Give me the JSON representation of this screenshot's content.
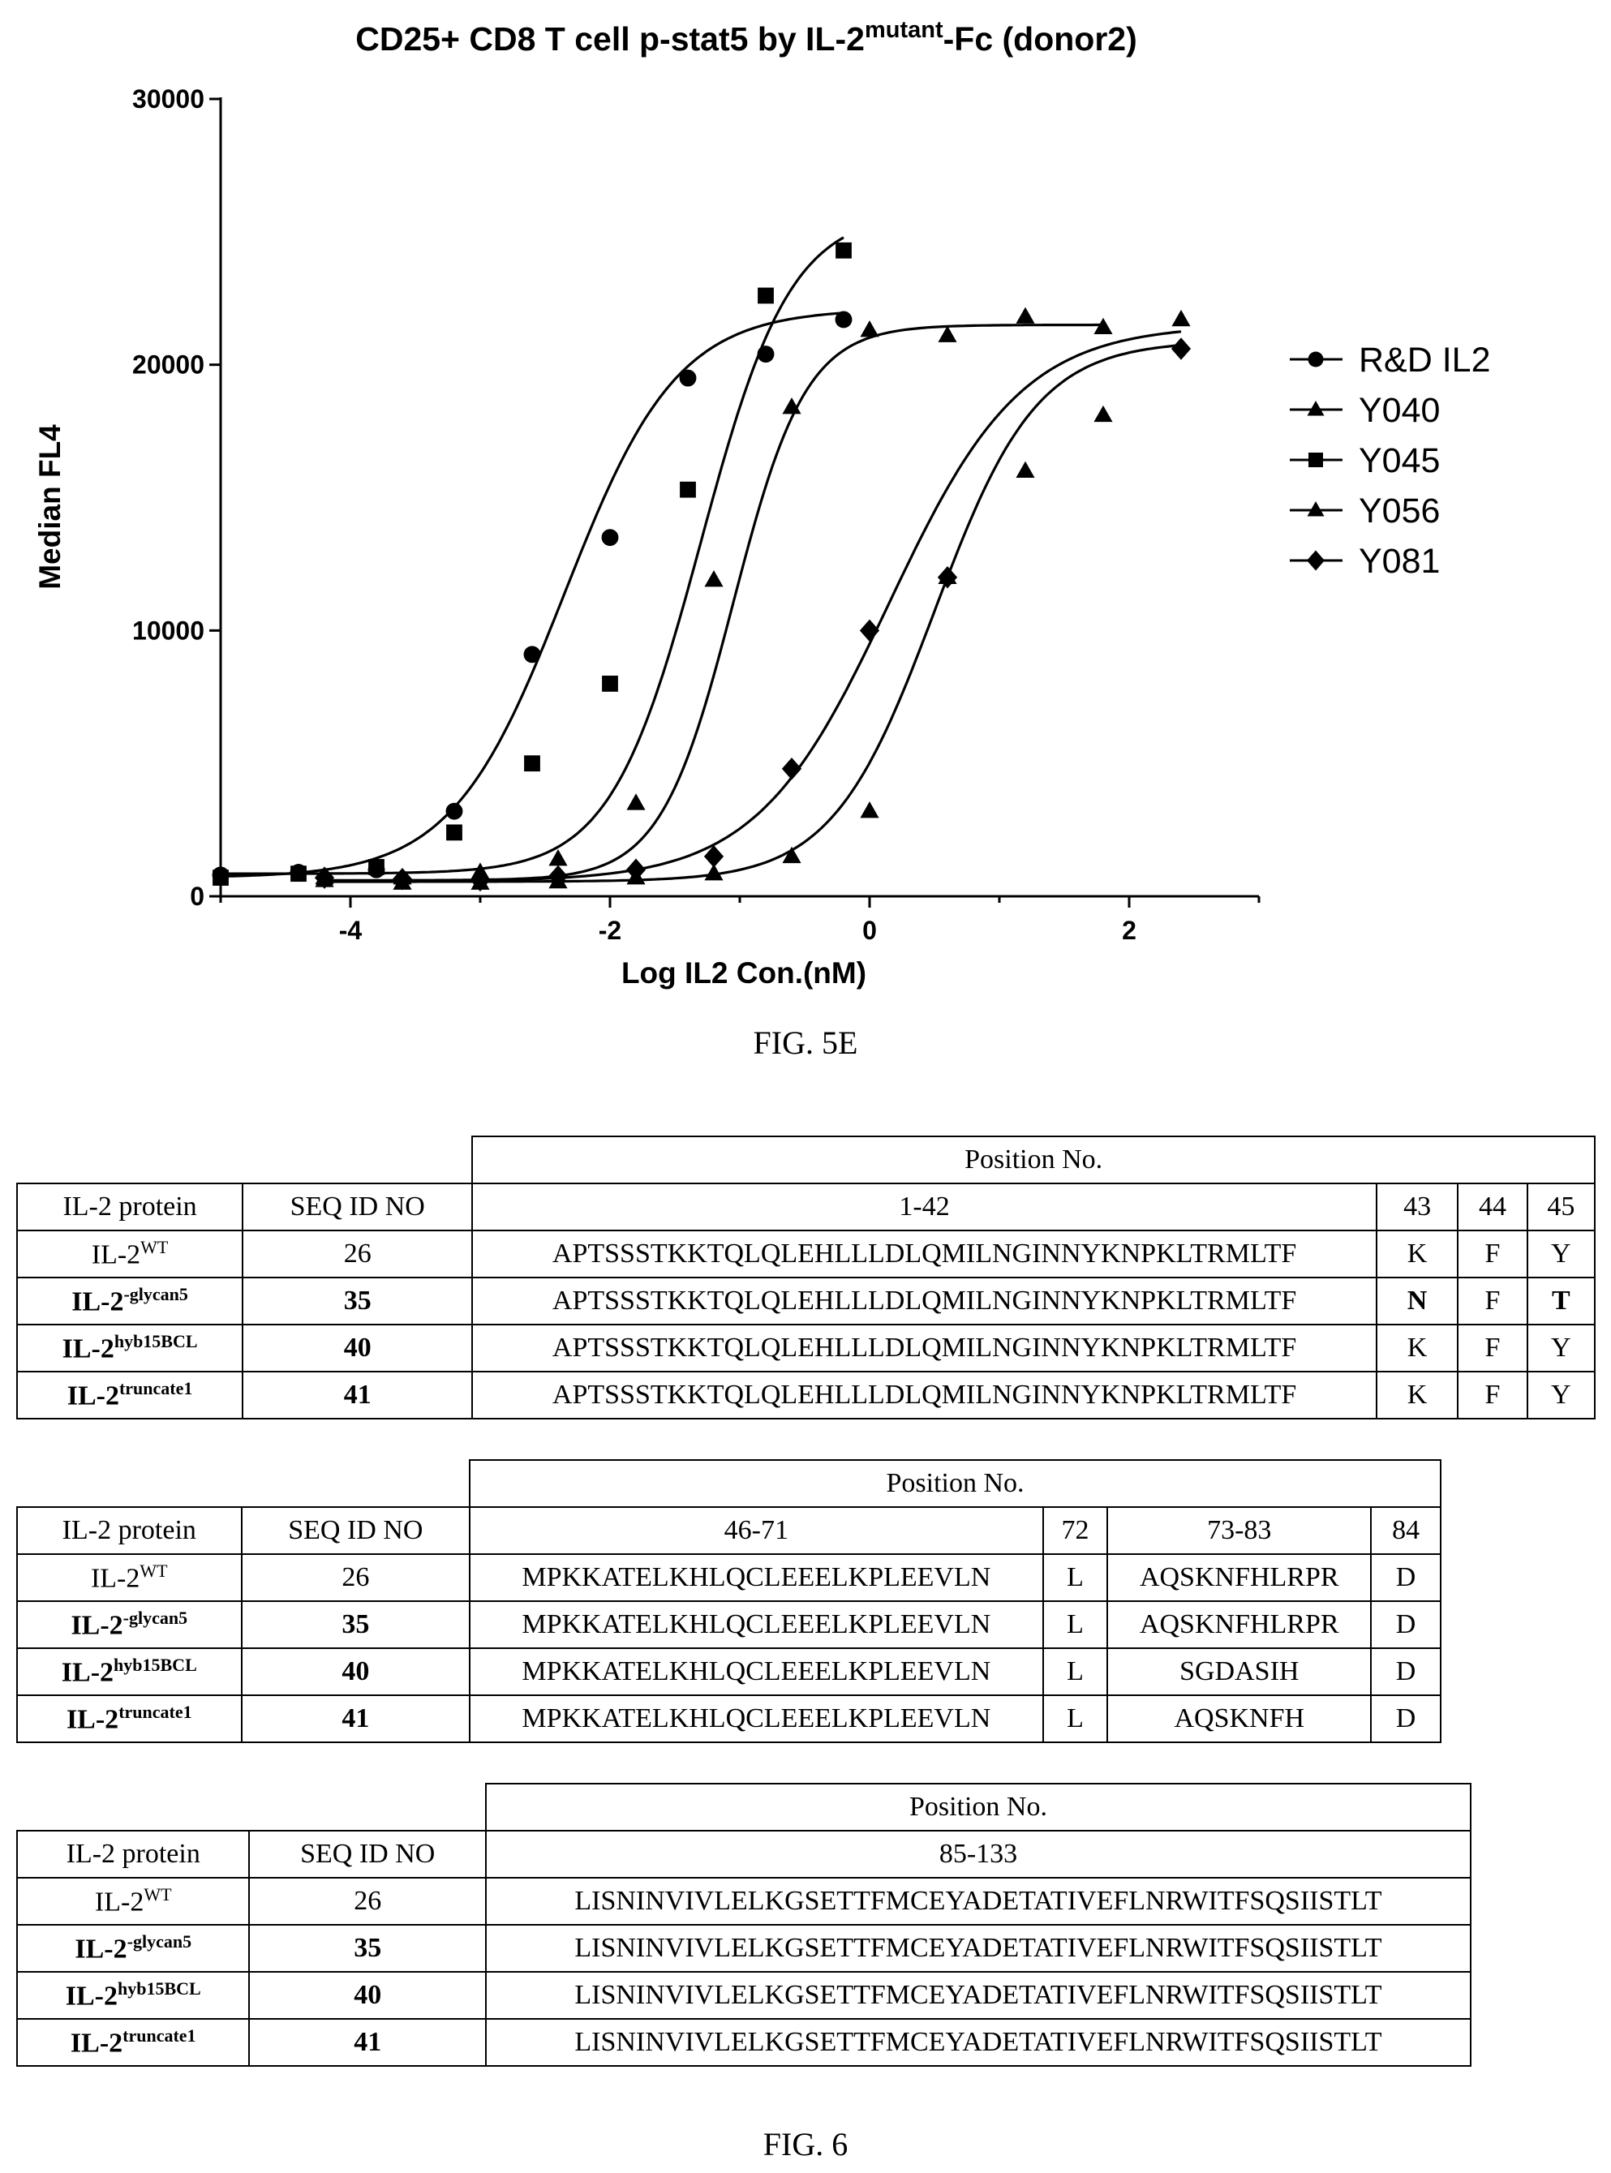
{
  "figure_5e": {
    "caption": "FIG. 5E",
    "chart_data": {
      "type": "scatter",
      "title": "CD25+ CD8 T cell p-stat5 by IL-2",
      "title_superscript": "mutant",
      "title_suffix": "-Fc (donor2)",
      "xlabel": "Log IL2 Con.(nM)",
      "ylabel": "Median  FL4",
      "xlim": [
        -5,
        3
      ],
      "ylim": [
        0,
        30000
      ],
      "xticks": [
        -4,
        -2,
        0,
        2
      ],
      "xtick_labels": [
        "-4",
        "-2",
        "0",
        "2"
      ],
      "yticks": [
        0,
        10000,
        20000,
        30000
      ],
      "ytick_labels": [
        "0",
        "10000",
        "20000",
        "30000"
      ],
      "grid": false,
      "legend_position": "right",
      "series": [
        {
          "name": "R&D IL2",
          "marker": "circle",
          "x": [
            -5.0,
            -4.4,
            -3.8,
            -3.2,
            -2.6,
            -2.0,
            -1.4,
            -0.8,
            -0.2
          ],
          "y": [
            800,
            900,
            1000,
            3200,
            9100,
            13500,
            19500,
            20400,
            21700
          ],
          "fit": {
            "bottom": 700,
            "top": 22100,
            "logec50": -2.35,
            "hill": 1.0
          }
        },
        {
          "name": "Y040",
          "marker": "triangle",
          "x": [
            -4.2,
            -3.6,
            -3.0,
            -2.4,
            -1.8,
            -1.2,
            -0.6,
            0.0,
            0.6,
            1.2,
            1.8,
            2.4
          ],
          "y": [
            600,
            500,
            500,
            550,
            700,
            850,
            1500,
            3200,
            12000,
            16000,
            18100,
            21700
          ],
          "fit": {
            "bottom": 550,
            "top": 20900,
            "logec50": 0.5,
            "hill": 1.1
          }
        },
        {
          "name": "Y045",
          "marker": "square",
          "x": [
            -5.0,
            -4.4,
            -3.8,
            -3.2,
            -2.6,
            -2.0,
            -1.4,
            -0.8,
            -0.2
          ],
          "y": [
            700,
            850,
            1100,
            2400,
            5000,
            8000,
            15300,
            22600,
            24300
          ],
          "fit": {
            "bottom": 850,
            "top": 25800,
            "logec50": -1.3,
            "hill": 1.25
          }
        },
        {
          "name": "Y056",
          "marker": "triangle",
          "x": [
            -4.2,
            -3.6,
            -3.0,
            -2.4,
            -1.8,
            -1.2,
            -0.6,
            0.0,
            0.6,
            1.2,
            1.8
          ],
          "y": [
            700,
            700,
            900,
            1400,
            3500,
            11900,
            18400,
            21300,
            21100,
            21800,
            21400
          ],
          "fit": {
            "bottom": 600,
            "top": 21500,
            "logec50": -1.05,
            "hill": 1.55
          }
        },
        {
          "name": "Y081",
          "marker": "diamond",
          "x": [
            -4.2,
            -3.6,
            -3.0,
            -2.4,
            -1.8,
            -1.2,
            -0.6,
            0.0,
            0.6,
            2.4
          ],
          "y": [
            700,
            650,
            600,
            750,
            1000,
            1500,
            4800,
            10000,
            12000,
            20600
          ],
          "fit": {
            "bottom": 550,
            "top": 21500,
            "logec50": 0.15,
            "hill": 0.85
          }
        }
      ]
    }
  },
  "figure_6": {
    "caption": "FIG. 6",
    "tables": [
      {
        "header_span": "Position No.",
        "columns": [
          "IL-2 protein",
          "SEQ ID NO",
          "1-42",
          "43",
          "44",
          "45"
        ],
        "rows": [
          {
            "protein": "IL-2",
            "sup": "WT",
            "seq_id": "26",
            "cells": [
              "APTSSSTKKTQLQLEHLLLDLQMILNGINNYKNPKLTRMLTF",
              "K",
              "F",
              "Y"
            ],
            "bold": false,
            "bold_cells": []
          },
          {
            "protein": "IL-2",
            "sup": "-glycan5",
            "seq_id": "35",
            "cells": [
              "APTSSSTKKTQLQLEHLLLDLQMILNGINNYKNPKLTRMLTF",
              "N",
              "F",
              "T"
            ],
            "bold": true,
            "bold_cells": [
              1,
              3
            ]
          },
          {
            "protein": "IL-2",
            "sup": "hyb15BCL",
            "seq_id": "40",
            "cells": [
              "APTSSSTKKTQLQLEHLLLDLQMILNGINNYKNPKLTRMLTF",
              "K",
              "F",
              "Y"
            ],
            "bold": true,
            "bold_cells": []
          },
          {
            "protein": "IL-2",
            "sup": "truncate1",
            "seq_id": "41",
            "cells": [
              "APTSSSTKKTQLQLEHLLLDLQMILNGINNYKNPKLTRMLTF",
              "K",
              "F",
              "Y"
            ],
            "bold": true,
            "bold_cells": []
          }
        ]
      },
      {
        "header_span": "Position No.",
        "columns": [
          "IL-2 protein",
          "SEQ ID NO",
          "46-71",
          "72",
          "73-83",
          "84"
        ],
        "rows": [
          {
            "protein": "IL-2",
            "sup": "WT",
            "seq_id": "26",
            "cells": [
              "MPKKATELKHLQCLEEELKPLEEVLN",
              "L",
              "AQSKNFHLRPR",
              "D"
            ],
            "bold": false,
            "bold_cells": []
          },
          {
            "protein": "IL-2",
            "sup": "-glycan5",
            "seq_id": "35",
            "cells": [
              "MPKKATELKHLQCLEEELKPLEEVLN",
              "L",
              "AQSKNFHLRPR",
              "D"
            ],
            "bold": true,
            "bold_cells": []
          },
          {
            "protein": "IL-2",
            "sup": "hyb15BCL",
            "seq_id": "40",
            "cells": [
              "MPKKATELKHLQCLEEELKPLEEVLN",
              "L",
              "SGDASIH",
              "D"
            ],
            "bold": true,
            "bold_cells": []
          },
          {
            "protein": "IL-2",
            "sup": "truncate1",
            "seq_id": "41",
            "cells": [
              "MPKKATELKHLQCLEEELKPLEEVLN",
              "L",
              "AQSKNFH",
              "D"
            ],
            "bold": true,
            "bold_cells": []
          }
        ]
      },
      {
        "header_span": "Position No.",
        "columns": [
          "IL-2 protein",
          "SEQ ID NO",
          "85-133"
        ],
        "rows": [
          {
            "protein": "IL-2",
            "sup": "WT",
            "seq_id": "26",
            "cells": [
              "LISNINVIVLELKGSETTFMCEYADETATIVEFLNRWITFSQSIISTLT"
            ],
            "bold": false,
            "bold_cells": []
          },
          {
            "protein": "IL-2",
            "sup": "-glycan5",
            "seq_id": "35",
            "cells": [
              "LISNINVIVLELKGSETTFMCEYADETATIVEFLNRWITFSQSIISTLT"
            ],
            "bold": true,
            "bold_cells": []
          },
          {
            "protein": "IL-2",
            "sup": "hyb15BCL",
            "seq_id": "40",
            "cells": [
              "LISNINVIVLELKGSETTFMCEYADETATIVEFLNRWITFSQSIISTLT"
            ],
            "bold": true,
            "bold_cells": []
          },
          {
            "protein": "IL-2",
            "sup": "truncate1",
            "seq_id": "41",
            "cells": [
              "LISNINVIVLELKGSETTFMCEYADETATIVEFLNRWITFSQSIISTLT"
            ],
            "bold": true,
            "bold_cells": []
          }
        ]
      }
    ]
  }
}
